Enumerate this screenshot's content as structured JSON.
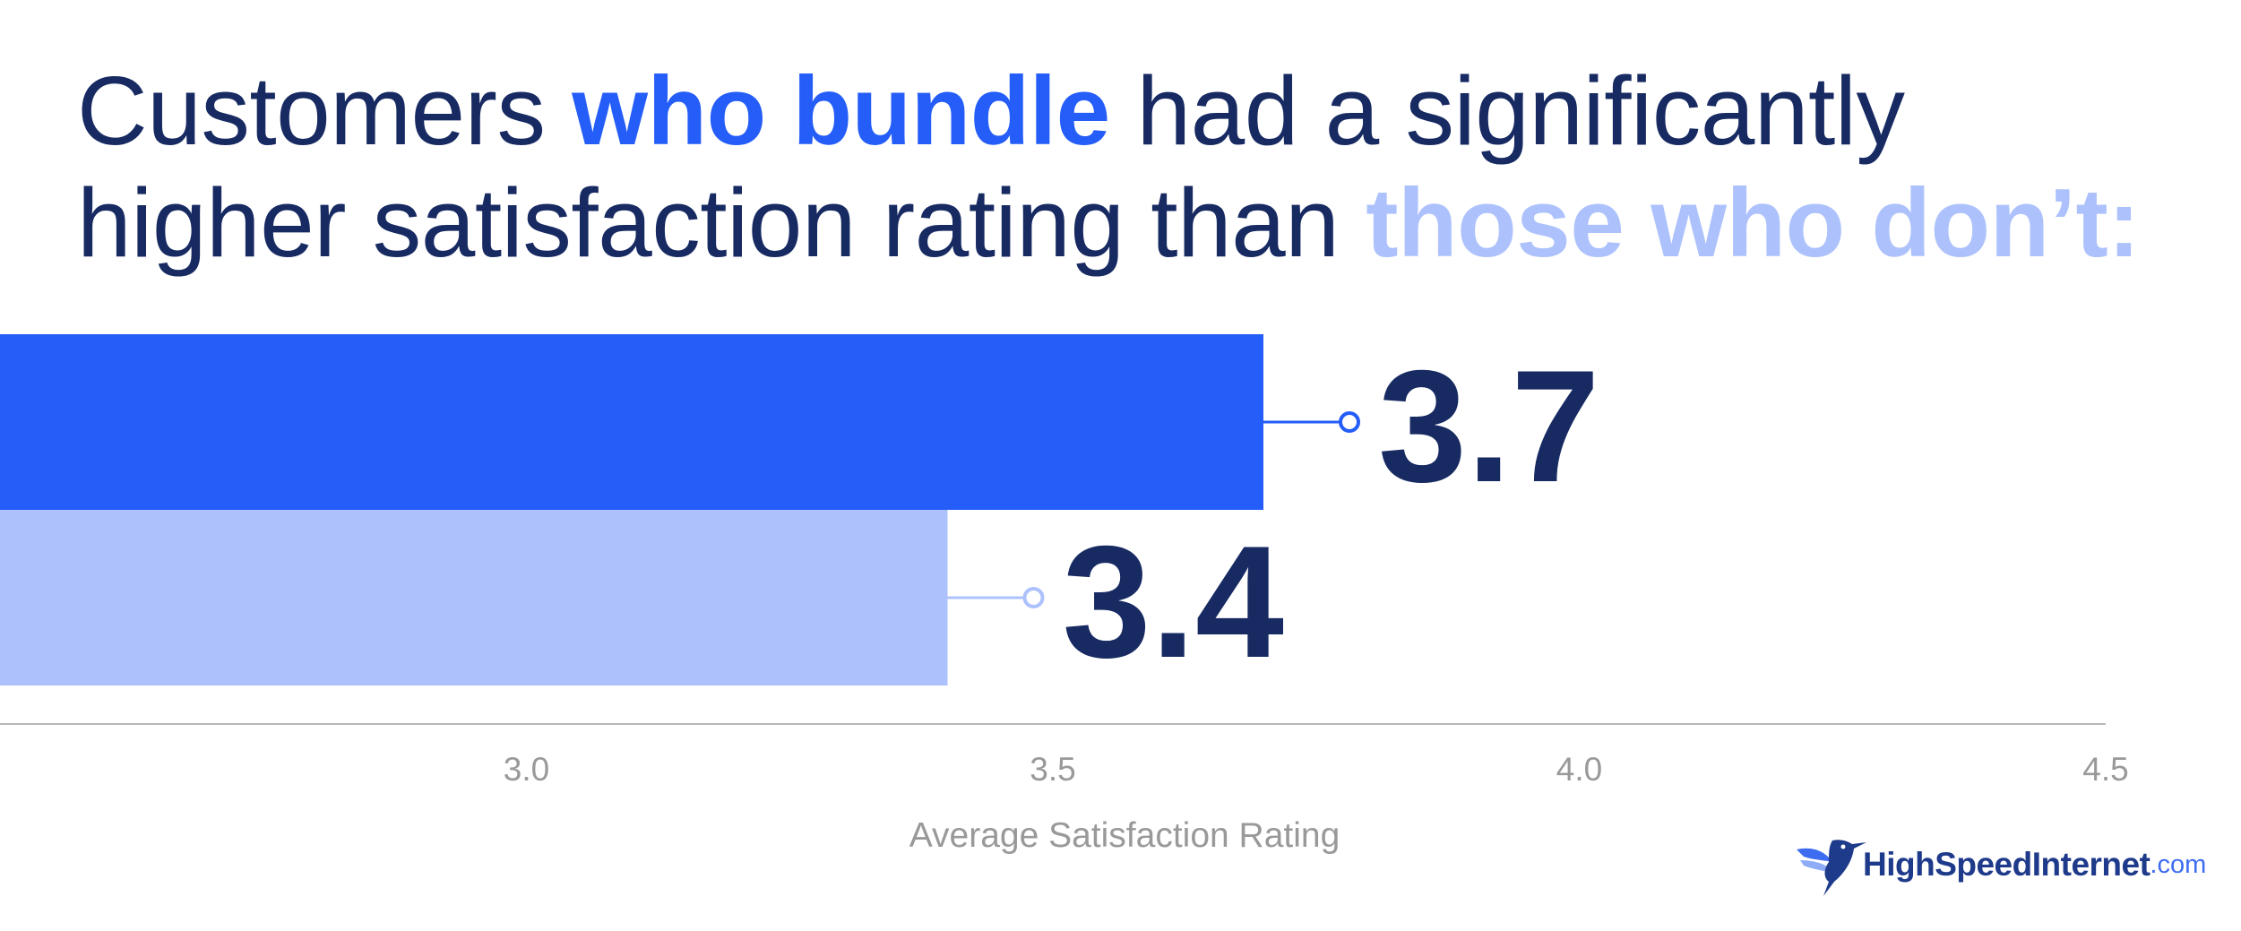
{
  "title": {
    "part1": "Customers ",
    "highlight1": "who bundle",
    "part2": " had a significantly",
    "line2": "higher satisfaction rating than ",
    "highlight2": "those who don’t:"
  },
  "colors": {
    "title_text": "#172a62",
    "bundle": "#245df7",
    "no_bundle": "#adc2fc",
    "value_label": "#172a62",
    "axis": "#b8b8b8",
    "tick_label": "#999999"
  },
  "chart_data": {
    "type": "bar",
    "orientation": "horizontal",
    "categories": [
      "Customers who bundle",
      "Those who don’t"
    ],
    "values": [
      3.7,
      3.4
    ],
    "data_labels": [
      "3.7",
      "3.4"
    ],
    "xlabel": "Average Satisfaction Rating",
    "xticks": [
      "3.0",
      "3.5",
      "4.0",
      "4.5"
    ],
    "xtick_values": [
      3.0,
      3.5,
      4.0,
      4.5
    ],
    "xlim": [
      2.5,
      4.5
    ],
    "grid": false,
    "legend": "none"
  },
  "brand": {
    "name": "HighSpeedInternet",
    "tld": ".com",
    "logo_icon": "hummingbird-icon"
  }
}
